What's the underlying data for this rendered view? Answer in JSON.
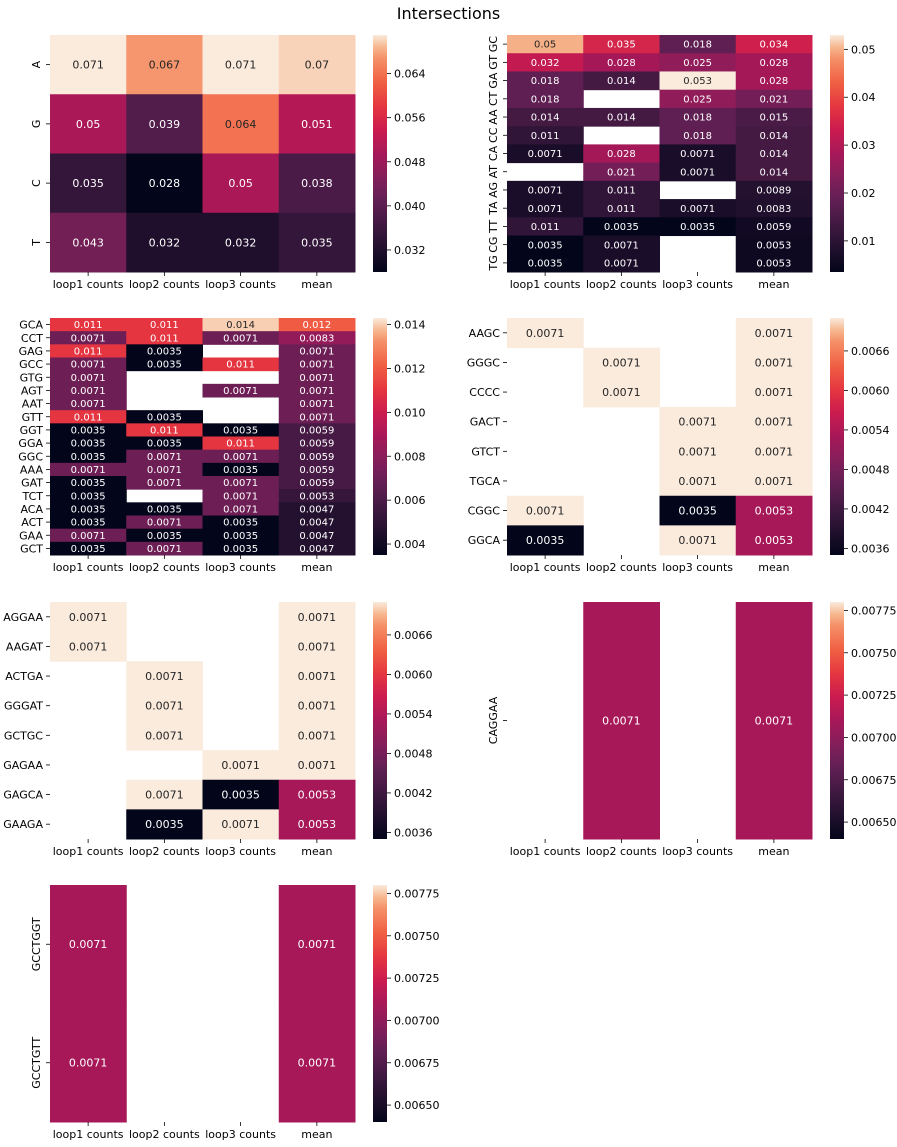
{
  "title": "Intersections",
  "columns": [
    "loop1 counts",
    "loop2 counts",
    "loop3 counts",
    "mean"
  ],
  "chart_data": [
    {
      "type": "heatmap",
      "rows": [
        "A",
        "G",
        "C",
        "T"
      ],
      "values": [
        [
          0.071,
          0.067,
          0.071,
          0.07
        ],
        [
          0.05,
          0.039,
          0.064,
          0.051
        ],
        [
          0.035,
          0.028,
          0.05,
          0.038
        ],
        [
          0.043,
          0.032,
          0.032,
          0.035
        ]
      ],
      "labels": [
        [
          "0.071",
          "0.067",
          "0.071",
          "0.07"
        ],
        [
          "0.05",
          "0.039",
          "0.064",
          "0.051"
        ],
        [
          "0.035",
          "0.028",
          "0.05",
          "0.038"
        ],
        [
          "0.043",
          "0.032",
          "0.032",
          "0.035"
        ]
      ],
      "vmin": 0.028,
      "vmax": 0.071,
      "colorbar_ticks": [
        "0.032",
        "0.040",
        "0.048",
        "0.056",
        "0.064"
      ]
    },
    {
      "type": "heatmap",
      "rows": [
        "GC",
        "GT",
        "GA",
        "CT",
        "AA",
        "CC",
        "CA",
        "AT",
        "AG",
        "TA",
        "TT",
        "CG",
        "TG"
      ],
      "rows_shown": [
        "GC",
        "GT",
        "GA",
        "CT",
        "AA",
        "CC",
        "CA",
        "AT",
        "AG",
        "TA",
        "TT",
        "CG",
        "TG"
      ],
      "values": [
        [
          0.05,
          0.035,
          0.018,
          0.034
        ],
        [
          0.032,
          0.028,
          0.025,
          0.028
        ],
        [
          0.018,
          0.014,
          0.053,
          0.028
        ],
        [
          0.018,
          null,
          0.025,
          0.021
        ],
        [
          0.014,
          0.014,
          0.018,
          0.015
        ],
        [
          0.011,
          null,
          0.018,
          0.014
        ],
        [
          0.0071,
          0.028,
          0.0071,
          0.014
        ],
        [
          null,
          0.021,
          0.0071,
          0.014
        ],
        [
          0.0071,
          0.011,
          null,
          0.0089
        ],
        [
          0.0071,
          0.011,
          0.0071,
          0.0083
        ],
        [
          0.011,
          0.0035,
          0.0035,
          0.0059
        ],
        [
          0.0035,
          0.0071,
          null,
          0.0053
        ],
        [
          0.0035,
          0.0071,
          null,
          0.0053
        ]
      ],
      "labels": [
        [
          "0.05",
          "0.035",
          "0.018",
          "0.034"
        ],
        [
          "0.032",
          "0.028",
          "0.025",
          "0.028"
        ],
        [
          "0.018",
          "0.014",
          "0.053",
          "0.028"
        ],
        [
          "0.018",
          "",
          "0.025",
          "0.021"
        ],
        [
          "0.014",
          "0.014",
          "0.018",
          "0.015"
        ],
        [
          "0.011",
          "",
          "0.018",
          "0.014"
        ],
        [
          "0.0071",
          "0.028",
          "0.0071",
          "0.014"
        ],
        [
          "",
          "0.021",
          "0.0071",
          "0.014"
        ],
        [
          "0.0071",
          "0.011",
          "",
          "0.0089"
        ],
        [
          "0.0071",
          "0.011",
          "0.0071",
          "0.0083"
        ],
        [
          "0.011",
          "0.0035",
          "0.0035",
          "0.0059"
        ],
        [
          "0.0035",
          "0.0071",
          "",
          "0.0053"
        ],
        [
          "0.0035",
          "0.0071",
          "",
          "0.0053"
        ]
      ],
      "vmin": 0.0035,
      "vmax": 0.053,
      "colorbar_ticks": [
        "0.01",
        "0.02",
        "0.03",
        "0.04",
        "0.05"
      ]
    },
    {
      "type": "heatmap",
      "rows": [
        "GCA",
        "CCT",
        "GAG",
        "GCC",
        "GTG",
        "AGT",
        "AAT",
        "GTT",
        "GGT",
        "GGA",
        "GGC",
        "AAA",
        "GAT",
        "TCT",
        "ACA",
        "ACT",
        "GAA",
        "GCT"
      ],
      "values": [
        [
          0.011,
          0.011,
          0.014,
          0.012
        ],
        [
          0.0071,
          0.011,
          0.0071,
          0.0083
        ],
        [
          0.011,
          0.0035,
          null,
          0.0071
        ],
        [
          0.0071,
          0.0035,
          0.011,
          0.0071
        ],
        [
          0.0071,
          null,
          null,
          0.0071
        ],
        [
          0.0071,
          null,
          0.0071,
          0.0071
        ],
        [
          0.0071,
          null,
          null,
          0.0071
        ],
        [
          0.011,
          0.0035,
          null,
          0.0071
        ],
        [
          0.0035,
          0.011,
          0.0035,
          0.0059
        ],
        [
          0.0035,
          0.0035,
          0.011,
          0.0059
        ],
        [
          0.0035,
          0.0071,
          0.0071,
          0.0059
        ],
        [
          0.0071,
          0.0071,
          0.0035,
          0.0059
        ],
        [
          0.0035,
          0.0071,
          0.0071,
          0.0059
        ],
        [
          0.0035,
          null,
          0.0071,
          0.0053
        ],
        [
          0.0035,
          0.0035,
          0.0071,
          0.0047
        ],
        [
          0.0035,
          0.0071,
          0.0035,
          0.0047
        ],
        [
          0.0071,
          0.0035,
          0.0035,
          0.0047
        ],
        [
          0.0035,
          0.0071,
          0.0035,
          0.0047
        ]
      ],
      "labels": [
        [
          "0.011",
          "0.011",
          "0.014",
          "0.012"
        ],
        [
          "0.0071",
          "0.011",
          "0.0071",
          "0.0083"
        ],
        [
          "0.011",
          "0.0035",
          "",
          "0.0071"
        ],
        [
          "0.0071",
          "0.0035",
          "0.011",
          "0.0071"
        ],
        [
          "0.0071",
          "",
          "",
          "0.0071"
        ],
        [
          "0.0071",
          "",
          "0.0071",
          "0.0071"
        ],
        [
          "0.0071",
          "",
          "",
          "0.0071"
        ],
        [
          "0.011",
          "0.0035",
          "",
          "0.0071"
        ],
        [
          "0.0035",
          "0.011",
          "0.0035",
          "0.0059"
        ],
        [
          "0.0035",
          "0.0035",
          "0.011",
          "0.0059"
        ],
        [
          "0.0035",
          "0.0071",
          "0.0071",
          "0.0059"
        ],
        [
          "0.0071",
          "0.0071",
          "0.0035",
          "0.0059"
        ],
        [
          "0.0035",
          "0.0071",
          "0.0071",
          "0.0059"
        ],
        [
          "0.0035",
          "",
          "0.0071",
          "0.0053"
        ],
        [
          "0.0035",
          "0.0035",
          "0.0071",
          "0.0047"
        ],
        [
          "0.0035",
          "0.0071",
          "0.0035",
          "0.0047"
        ],
        [
          "0.0071",
          "0.0035",
          "0.0035",
          "0.0047"
        ],
        [
          "0.0035",
          "0.0071",
          "0.0035",
          "0.0047"
        ]
      ],
      "vmin": 0.0035,
      "vmax": 0.0143,
      "colorbar_ticks": [
        "0.004",
        "0.006",
        "0.008",
        "0.010",
        "0.012",
        "0.014"
      ]
    },
    {
      "type": "heatmap",
      "rows": [
        "AAGC",
        "GGGC",
        "CCCC",
        "GACT",
        "GTCT",
        "TGCA",
        "CGGC",
        "GGCA"
      ],
      "values": [
        [
          0.0071,
          null,
          null,
          0.0071
        ],
        [
          null,
          0.0071,
          null,
          0.0071
        ],
        [
          null,
          0.0071,
          null,
          0.0071
        ],
        [
          null,
          null,
          0.0071,
          0.0071
        ],
        [
          null,
          null,
          0.0071,
          0.0071
        ],
        [
          null,
          null,
          0.0071,
          0.0071
        ],
        [
          0.0071,
          null,
          0.0035,
          0.0053
        ],
        [
          0.0035,
          null,
          0.0071,
          0.0053
        ]
      ],
      "labels": [
        [
          "0.0071",
          "",
          "",
          "0.0071"
        ],
        [
          "",
          "0.0071",
          "",
          "0.0071"
        ],
        [
          "",
          "0.0071",
          "",
          "0.0071"
        ],
        [
          "",
          "",
          "0.0071",
          "0.0071"
        ],
        [
          "",
          "",
          "0.0071",
          "0.0071"
        ],
        [
          "",
          "",
          "0.0071",
          "0.0071"
        ],
        [
          "0.0071",
          "",
          "0.0035",
          "0.0053"
        ],
        [
          "0.0035",
          "",
          "0.0071",
          "0.0053"
        ]
      ],
      "vmin": 0.0035,
      "vmax": 0.0071,
      "colorbar_ticks": [
        "0.0036",
        "0.0042",
        "0.0048",
        "0.0054",
        "0.0060",
        "0.0066"
      ]
    },
    {
      "type": "heatmap",
      "rows": [
        "AGGAA",
        "AAGAT",
        "ACTGA",
        "GGGAT",
        "GCTGC",
        "GAGAA",
        "GAGCA",
        "GAAGA"
      ],
      "values": [
        [
          0.0071,
          null,
          null,
          0.0071
        ],
        [
          0.0071,
          null,
          null,
          0.0071
        ],
        [
          null,
          0.0071,
          null,
          0.0071
        ],
        [
          null,
          0.0071,
          null,
          0.0071
        ],
        [
          null,
          0.0071,
          null,
          0.0071
        ],
        [
          null,
          null,
          0.0071,
          0.0071
        ],
        [
          null,
          0.0071,
          0.0035,
          0.0053
        ],
        [
          null,
          0.0035,
          0.0071,
          0.0053
        ]
      ],
      "labels": [
        [
          "0.0071",
          "",
          "",
          "0.0071"
        ],
        [
          "0.0071",
          "",
          "",
          "0.0071"
        ],
        [
          "",
          "0.0071",
          "",
          "0.0071"
        ],
        [
          "",
          "0.0071",
          "",
          "0.0071"
        ],
        [
          "",
          "0.0071",
          "",
          "0.0071"
        ],
        [
          "",
          "",
          "0.0071",
          "0.0071"
        ],
        [
          "",
          "0.0071",
          "0.0035",
          "0.0053"
        ],
        [
          "",
          "0.0035",
          "0.0071",
          "0.0053"
        ]
      ],
      "vmin": 0.0035,
      "vmax": 0.0071,
      "colorbar_ticks": [
        "0.0036",
        "0.0042",
        "0.0048",
        "0.0054",
        "0.0060",
        "0.0066"
      ]
    },
    {
      "type": "heatmap",
      "rows": [
        "CAGGAA"
      ],
      "values": [
        [
          null,
          0.0071,
          null,
          0.0071
        ]
      ],
      "labels": [
        [
          "",
          "0.0071",
          "",
          "0.0071"
        ]
      ],
      "vmin": 0.0064,
      "vmax": 0.0078,
      "colorbar_ticks": [
        "0.00650",
        "0.00675",
        "0.00700",
        "0.00725",
        "0.00750",
        "0.00775"
      ]
    },
    {
      "type": "heatmap",
      "rows": [
        "GCCTGGT",
        "GCCTGTT"
      ],
      "values": [
        [
          0.0071,
          null,
          null,
          0.0071
        ],
        [
          0.0071,
          null,
          null,
          0.0071
        ]
      ],
      "labels": [
        [
          "0.0071",
          "",
          "",
          "0.0071"
        ],
        [
          "0.0071",
          "",
          "",
          "0.0071"
        ]
      ],
      "vmin": 0.0064,
      "vmax": 0.0078,
      "colorbar_ticks": [
        "0.00650",
        "0.00675",
        "0.00700",
        "0.00725",
        "0.00750",
        "0.00775"
      ]
    }
  ]
}
